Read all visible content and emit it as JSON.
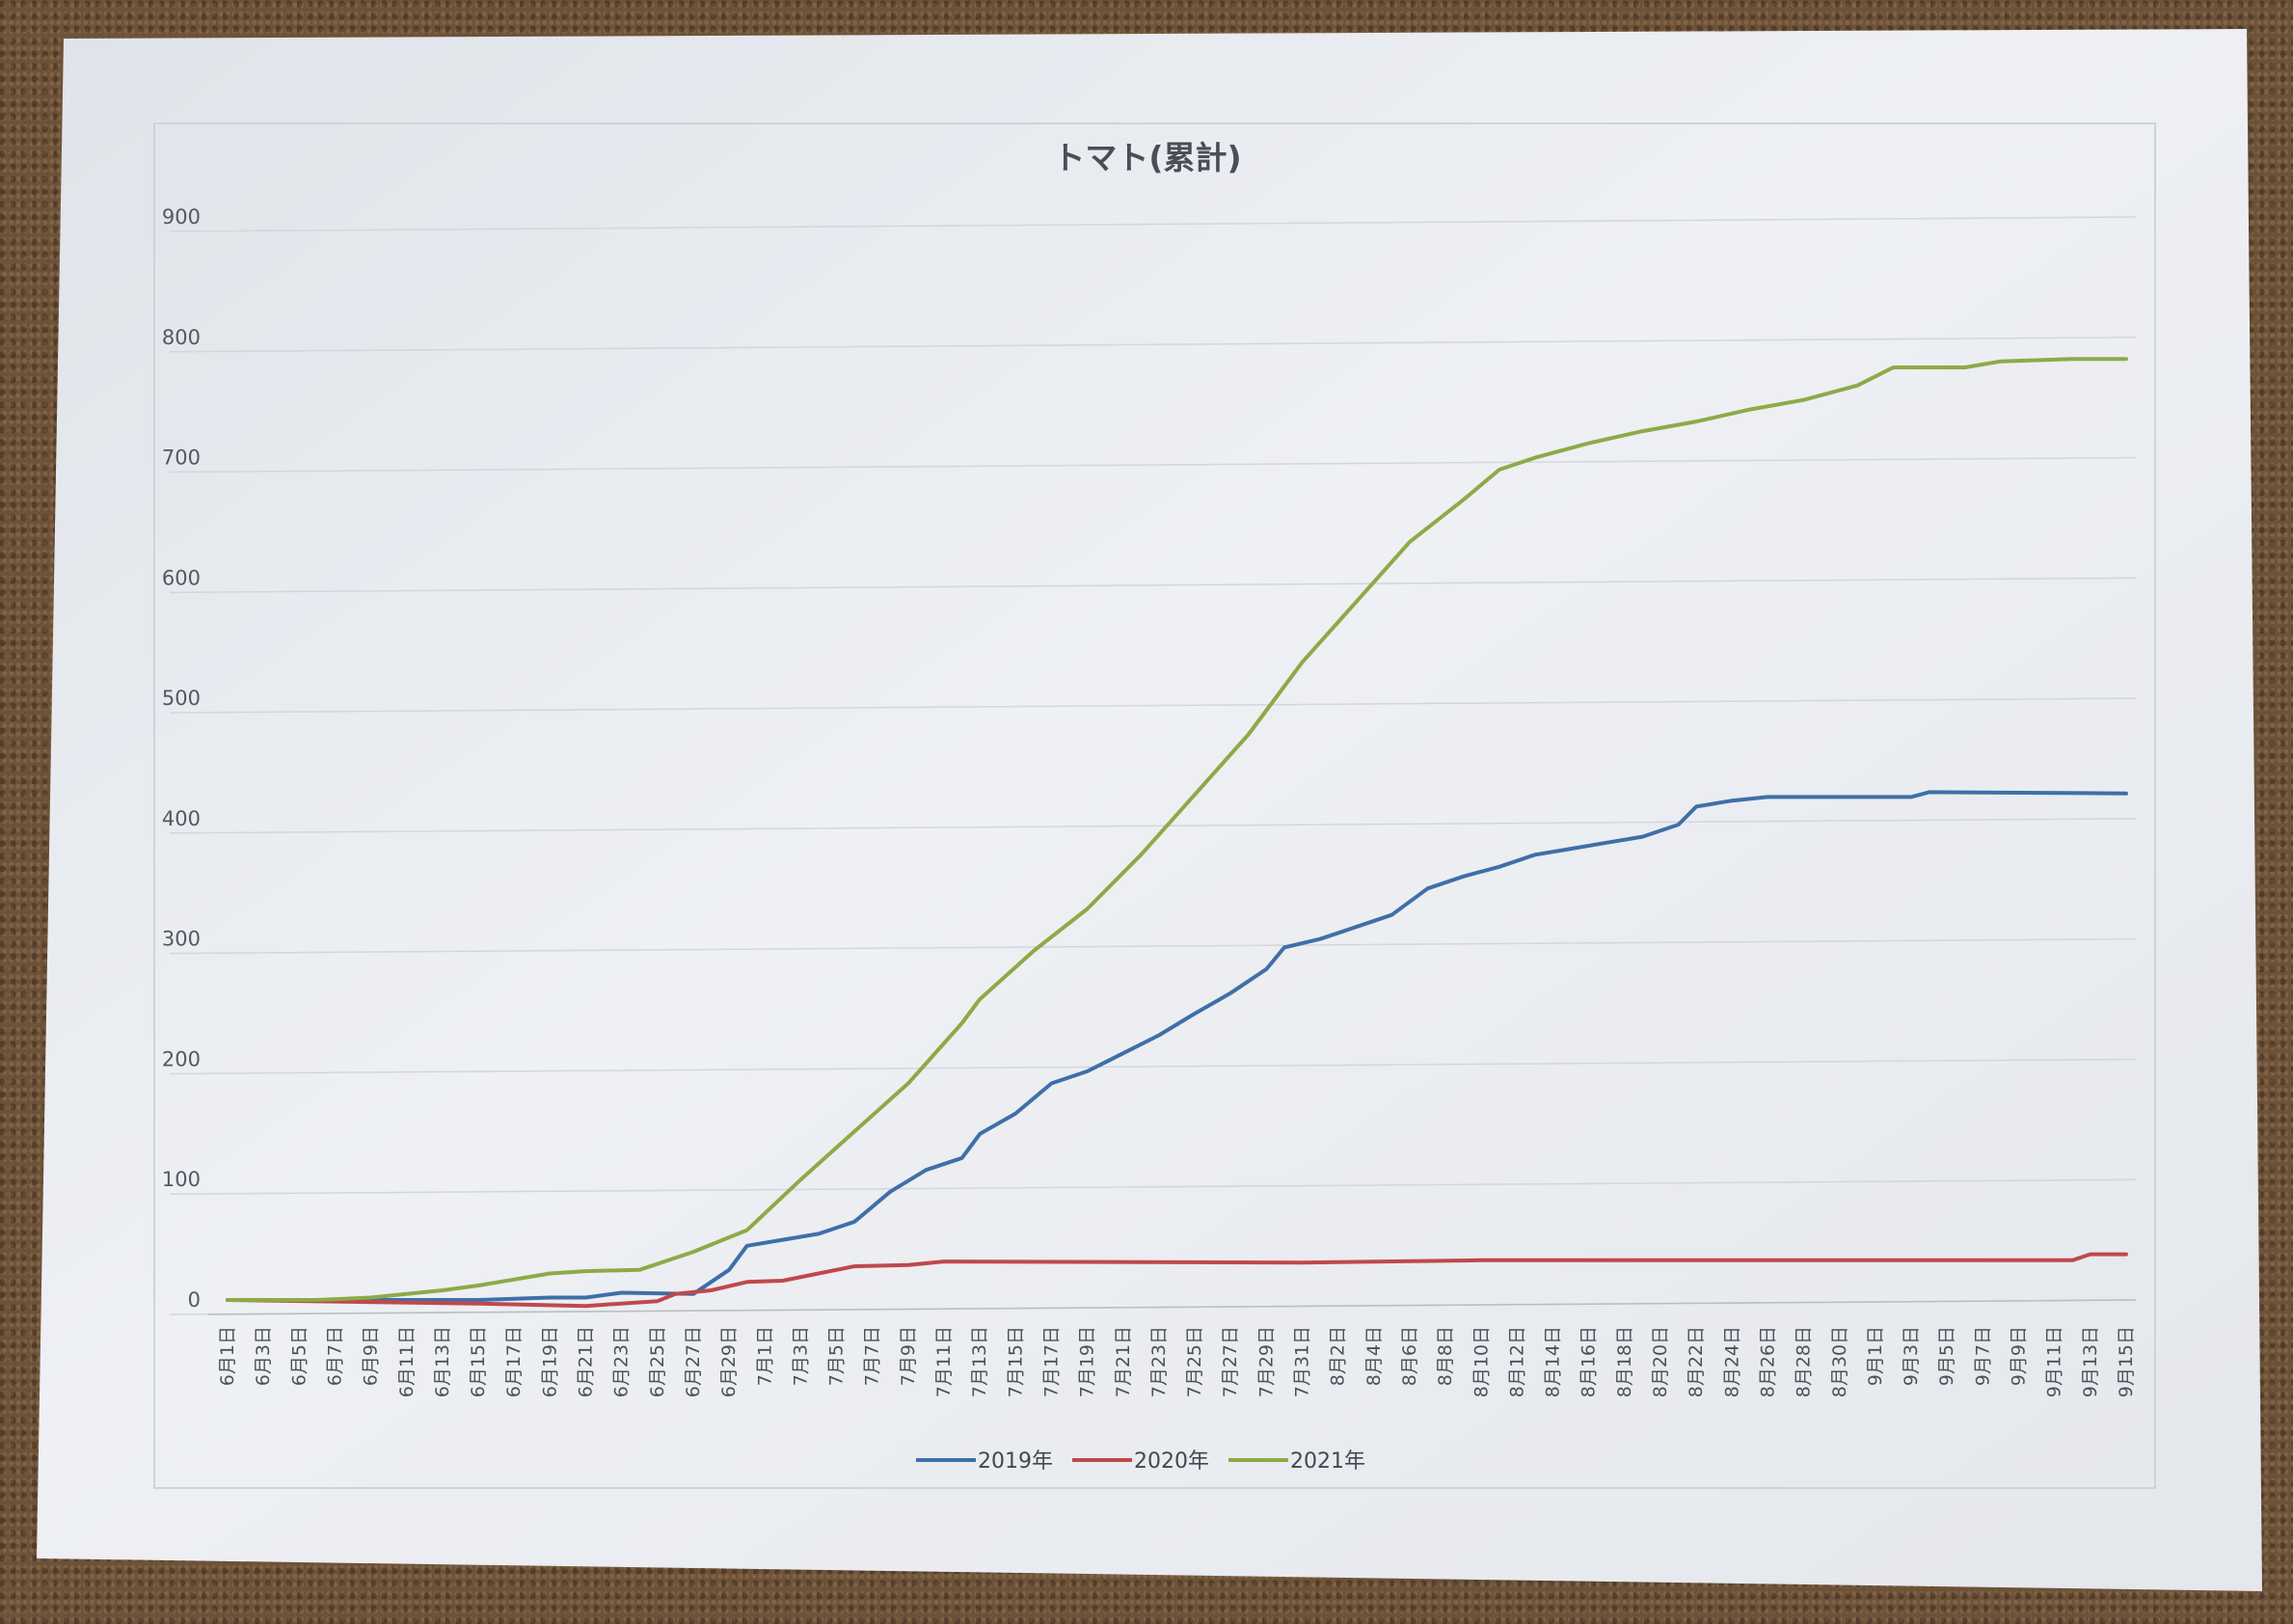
{
  "chart_data": {
    "type": "line",
    "title": "トマト(累計)",
    "xlabel": "",
    "ylabel": "",
    "ylim": [
      0,
      900
    ],
    "yticks": [
      0,
      100,
      200,
      300,
      400,
      500,
      600,
      700,
      800,
      900
    ],
    "x_start": "6月1日",
    "x_end": "9月15日",
    "grid": "horizontal",
    "legend_position": "bottom",
    "tick_labels": [
      "6月1日",
      "6月3日",
      "6月5日",
      "6月7日",
      "6月9日",
      "6月11日",
      "6月13日",
      "6月15日",
      "6月17日",
      "6月19日",
      "6月21日",
      "6月23日",
      "6月25日",
      "6月27日",
      "6月29日",
      "7月1日",
      "7月3日",
      "7月5日",
      "7月7日",
      "7月9日",
      "7月11日",
      "7月13日",
      "7月15日",
      "7月17日",
      "7月19日",
      "7月21日",
      "7月23日",
      "7月25日",
      "7月27日",
      "7月29日",
      "7月31日",
      "8月2日",
      "8月4日",
      "8月6日",
      "8月8日",
      "8月10日",
      "8月12日",
      "8月14日",
      "8月16日",
      "8月18日",
      "8月20日",
      "8月22日",
      "8月24日",
      "8月26日",
      "8月28日",
      "8月30日",
      "9月1日",
      "9月3日",
      "9月5日",
      "9月7日",
      "9月9日",
      "9月11日",
      "9月13日",
      "9月15日"
    ],
    "series": [
      {
        "name": "2019年",
        "color": "#3f6fa8",
        "points": [
          [
            "6月1日",
            0
          ],
          [
            "6月15日",
            0
          ],
          [
            "6月19日",
            2
          ],
          [
            "6月21日",
            2
          ],
          [
            "6月23日",
            6
          ],
          [
            "6月27日",
            5
          ],
          [
            "6月29日",
            25
          ],
          [
            "6月30日",
            45
          ],
          [
            "7月2日",
            50
          ],
          [
            "7月4日",
            55
          ],
          [
            "7月6日",
            65
          ],
          [
            "7月8日",
            90
          ],
          [
            "7月10日",
            108
          ],
          [
            "7月12日",
            118
          ],
          [
            "7月13日",
            138
          ],
          [
            "7月15日",
            155
          ],
          [
            "7月17日",
            180
          ],
          [
            "7月19日",
            190
          ],
          [
            "7月21日",
            205
          ],
          [
            "7月23日",
            220
          ],
          [
            "7月25日",
            238
          ],
          [
            "7月27日",
            255
          ],
          [
            "7月29日",
            275
          ],
          [
            "7月30日",
            293
          ],
          [
            "8月1日",
            300
          ],
          [
            "8月3日",
            310
          ],
          [
            "8月5日",
            320
          ],
          [
            "8月7日",
            342
          ],
          [
            "8月9日",
            352
          ],
          [
            "8月11日",
            360
          ],
          [
            "8月13日",
            370
          ],
          [
            "8月15日",
            375
          ],
          [
            "8月17日",
            380
          ],
          [
            "8月19日",
            385
          ],
          [
            "8月21日",
            395
          ],
          [
            "8月22日",
            410
          ],
          [
            "8月24日",
            415
          ],
          [
            "8月26日",
            418
          ],
          [
            "9月3日",
            418
          ],
          [
            "9月4日",
            422
          ],
          [
            "9月15日",
            421
          ]
        ]
      },
      {
        "name": "2020年",
        "color": "#c0484b",
        "points": [
          [
            "6月1日",
            0
          ],
          [
            "6月15日",
            -3
          ],
          [
            "6月21日",
            -5
          ],
          [
            "6月25日",
            -1
          ],
          [
            "6月26日",
            5
          ],
          [
            "6月28日",
            8
          ],
          [
            "6月30日",
            15
          ],
          [
            "7月2日",
            16
          ],
          [
            "7月4日",
            22
          ],
          [
            "7月6日",
            28
          ],
          [
            "7月9日",
            29
          ],
          [
            "7月11日",
            32
          ],
          [
            "7月31日",
            31
          ],
          [
            "8月10日",
            33
          ],
          [
            "9月12日",
            33
          ],
          [
            "9月13日",
            38
          ],
          [
            "9月15日",
            38
          ]
        ]
      },
      {
        "name": "2021年",
        "color": "#8daa46",
        "points": [
          [
            "6月1日",
            0
          ],
          [
            "6月6日",
            0
          ],
          [
            "6月9日",
            2
          ],
          [
            "6月13日",
            8
          ],
          [
            "6月15日",
            12
          ],
          [
            "6月19日",
            22
          ],
          [
            "6月21日",
            24
          ],
          [
            "6月24日",
            25
          ],
          [
            "6月27日",
            40
          ],
          [
            "6月30日",
            58
          ],
          [
            "7月3日",
            100
          ],
          [
            "7月6日",
            140
          ],
          [
            "7月9日",
            180
          ],
          [
            "7月12日",
            230
          ],
          [
            "7月13日",
            250
          ],
          [
            "7月16日",
            290
          ],
          [
            "7月19日",
            325
          ],
          [
            "7月22日",
            370
          ],
          [
            "7月25日",
            420
          ],
          [
            "7月28日",
            470
          ],
          [
            "7月31日",
            530
          ],
          [
            "8月3日",
            580
          ],
          [
            "8月6日",
            630
          ],
          [
            "8月9日",
            665
          ],
          [
            "8月11日",
            690
          ],
          [
            "8月13日",
            700
          ],
          [
            "8月16日",
            712
          ],
          [
            "8月19日",
            722
          ],
          [
            "8月22日",
            730
          ],
          [
            "8月25日",
            740
          ],
          [
            "8月28日",
            748
          ],
          [
            "8月31日",
            760
          ],
          [
            "9月2日",
            775
          ],
          [
            "9月6日",
            775
          ],
          [
            "9月8日",
            780
          ],
          [
            "9月12日",
            782
          ],
          [
            "9月15日",
            782
          ]
        ]
      }
    ]
  }
}
